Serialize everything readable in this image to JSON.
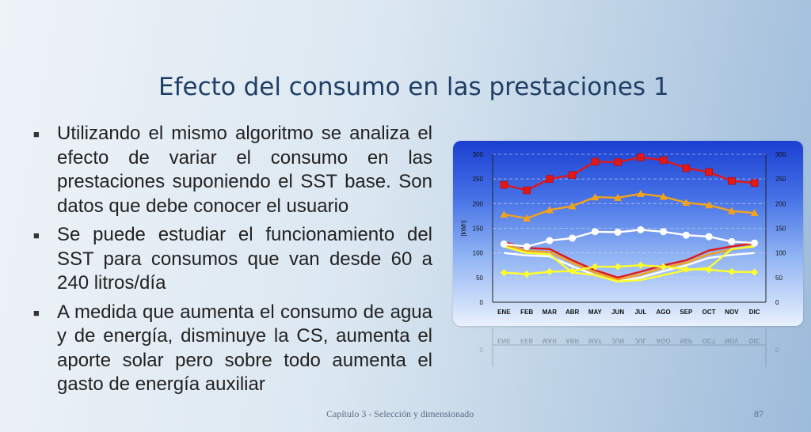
{
  "slide": {
    "title": "Efecto del consumo en las prestaciones 1",
    "bullets": [
      "Utilizando el mismo algoritmo se analiza el efecto de variar el consumo en las prestaciones suponiendo el SST base. Son datos que debe conocer el usuario",
      "Se puede estudiar el funcionamiento del SST para consumos que van desde 60 a 240 litros/día",
      "A medida que aumenta el consumo de agua y de energía, disminuye la CS, aumenta el aporte solar pero sobre todo aumenta el gasto de energía auxiliar"
    ],
    "bullet_marker": "■",
    "footer": "Capítulo 3 - Selección y dimensionado",
    "page_number": "87"
  },
  "chart_data": {
    "type": "line",
    "categories": [
      "ENE",
      "FEB",
      "MAR",
      "ABR",
      "MAY",
      "JUN",
      "JUL",
      "AGO",
      "SEP",
      "OCT",
      "NOV",
      "DIC"
    ],
    "ylabel": "[kWh]",
    "ylim": [
      0,
      300
    ],
    "yticks": [
      0,
      50,
      100,
      150,
      200,
      250,
      300
    ],
    "grid": true,
    "series": [
      {
        "color": "#e01818",
        "marker": "square",
        "values": [
          238,
          227,
          250,
          258,
          285,
          284,
          294,
          288,
          272,
          264,
          246,
          242
        ]
      },
      {
        "color": "#f4a21a",
        "marker": "triangle",
        "values": [
          178,
          170,
          187,
          195,
          213,
          212,
          220,
          214,
          202,
          197,
          185,
          181
        ]
      },
      {
        "color": "#ffffff",
        "marker": "circle",
        "values": [
          118,
          113,
          125,
          130,
          143,
          142,
          147,
          143,
          136,
          133,
          123,
          120
        ]
      },
      {
        "color": "#ffff2a",
        "marker": "diamond",
        "values": [
          60,
          57,
          62,
          63,
          72,
          72,
          75,
          72,
          67,
          66,
          62,
          61
        ]
      },
      {
        "color": "#e01818",
        "marker": "none",
        "values": [
          122,
          110,
          108,
          85,
          65,
          50,
          62,
          75,
          85,
          105,
          113,
          120
        ]
      },
      {
        "color": "#f4a21a",
        "marker": "none",
        "values": [
          117,
          104,
          102,
          80,
          60,
          46,
          56,
          70,
          80,
          97,
          107,
          115
        ]
      },
      {
        "color": "#ffffff",
        "marker": "none",
        "values": [
          100,
          95,
          93,
          73,
          55,
          42,
          50,
          63,
          75,
          90,
          96,
          100
        ]
      },
      {
        "color": "#ffff2a",
        "marker": "none",
        "values": [
          113,
          100,
          97,
          60,
          55,
          42,
          45,
          55,
          65,
          70,
          108,
          113
        ]
      }
    ]
  }
}
